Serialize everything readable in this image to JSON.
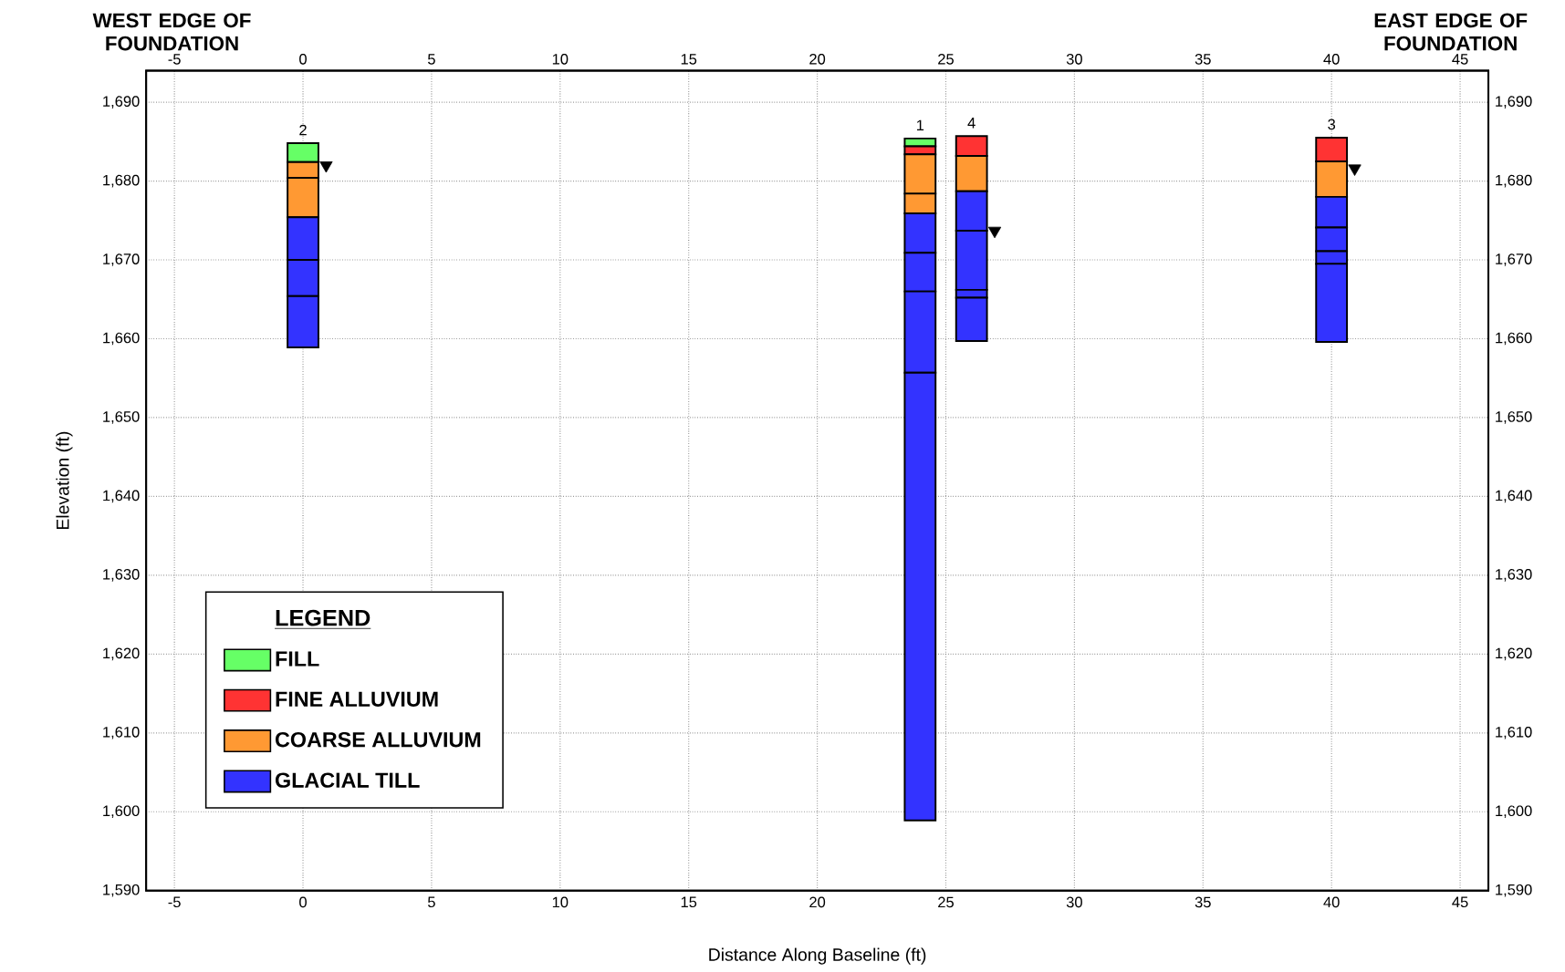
{
  "chart_data": {
    "type": "bar",
    "xlabel": "Distance Along Baseline (ft)",
    "ylabel": "Elevation (ft)",
    "legend_title": "LEGEND",
    "xlim": [
      -6.1,
      46.1
    ],
    "xticks": [
      -5,
      0,
      5,
      10,
      15,
      20,
      25,
      30,
      35,
      40,
      45
    ],
    "x2lim": [
      -6.1,
      46.1
    ],
    "x2ticks": [
      -5,
      0,
      5,
      10,
      15,
      20,
      25,
      30,
      35,
      40,
      45
    ],
    "ylim": [
      1590,
      1694
    ],
    "yticks": [
      {
        "value": 1590,
        "label": "1,590"
      },
      {
        "value": 1600,
        "label": "1,600"
      },
      {
        "value": 1610,
        "label": "1,610"
      },
      {
        "value": 1620,
        "label": "1,620"
      },
      {
        "value": 1630,
        "label": "1,630"
      },
      {
        "value": 1640,
        "label": "1,640"
      },
      {
        "value": 1650,
        "label": "1,650"
      },
      {
        "value": 1660,
        "label": "1,660"
      },
      {
        "value": 1670,
        "label": "1,670"
      },
      {
        "value": 1680,
        "label": "1,680"
      },
      {
        "value": 1690,
        "label": "1,690"
      }
    ],
    "y2lim": [
      1590,
      1694
    ],
    "y2ticks": [
      {
        "value": 1590,
        "label": "1,590"
      },
      {
        "value": 1600,
        "label": "1,600"
      },
      {
        "value": 1610,
        "label": "1,610"
      },
      {
        "value": 1620,
        "label": "1,620"
      },
      {
        "value": 1630,
        "label": "1,630"
      },
      {
        "value": 1640,
        "label": "1,640"
      },
      {
        "value": 1650,
        "label": "1,650"
      },
      {
        "value": 1660,
        "label": "1,660"
      },
      {
        "value": 1670,
        "label": "1,670"
      },
      {
        "value": 1680,
        "label": "1,680"
      },
      {
        "value": 1690,
        "label": "1,690"
      }
    ],
    "grid": true,
    "legend": "bottom left",
    "series": [
      {
        "name": "FILL",
        "color": "#66ff66",
        "x": [
          0,
          24
        ],
        "base": [
          1682.4,
          1684.4
        ],
        "values": [
          2.4,
          1.0
        ]
      },
      {
        "name": "FINE ALLUVIUM",
        "color": "#ff3333",
        "x": [
          24,
          26,
          40
        ],
        "base": [
          1683.4,
          1683.2,
          1682.5
        ],
        "values": [
          1.0,
          2.5,
          3.0
        ]
      },
      {
        "name": "COARSE ALLUVIUM",
        "color": "#ff9933",
        "x": [
          0,
          24,
          26,
          40
        ],
        "base": [
          1680.4,
          1678.4,
          1678.7,
          1678.0
        ],
        "values": [
          2.0,
          5.0,
          4.5,
          4.5
        ]
      },
      {
        "color": "#ff9933",
        "x": [
          0,
          24
        ],
        "base": [
          1675.4,
          1675.9
        ],
        "values": [
          5.0,
          2.5
        ]
      },
      {
        "name": "GLACIAL TILL",
        "color": "#3333ff",
        "x": [
          0,
          24,
          26,
          40
        ],
        "base": [
          1670.0,
          1670.9,
          1673.7,
          1674.1
        ],
        "values": [
          5.4,
          5.0,
          5.0,
          3.9
        ]
      },
      {
        "color": "#3333ff",
        "x": [
          0,
          24,
          26,
          40
        ],
        "base": [
          1665.4,
          1666.0,
          1666.2,
          1671.1
        ],
        "values": [
          4.6,
          4.9,
          7.5,
          3.0
        ]
      },
      {
        "color": "#3333ff",
        "x": [
          0,
          24,
          26,
          40
        ],
        "base": [
          1658.9,
          1655.7,
          1665.2,
          1669.5
        ],
        "values": [
          6.5,
          10.3,
          1.0,
          1.6
        ]
      },
      {
        "color": "#3333ff",
        "x": [
          24,
          26,
          40
        ],
        "base": [
          1598.9,
          1659.7,
          1659.6
        ],
        "values": [
          56.8,
          5.5,
          9.9
        ]
      },
      {
        "type": "scatter",
        "marker": "triangle",
        "color": "#000000",
        "x": [
          0.9,
          26.9,
          40.9
        ],
        "values": [
          1682.0,
          1673.7,
          1681.6
        ]
      }
    ],
    "annotations": [
      "WEST EDGE OF FOUNDATION",
      "EAST EDGE OF FOUNDATION",
      {
        "text": "2",
        "x": 0,
        "y": 1684.8
      },
      {
        "text": "1",
        "x": 24,
        "y": 1685.4
      },
      {
        "text": "4",
        "x": 26,
        "y": 1685.7
      },
      {
        "text": "3",
        "x": 40,
        "y": 1685.5
      }
    ]
  }
}
